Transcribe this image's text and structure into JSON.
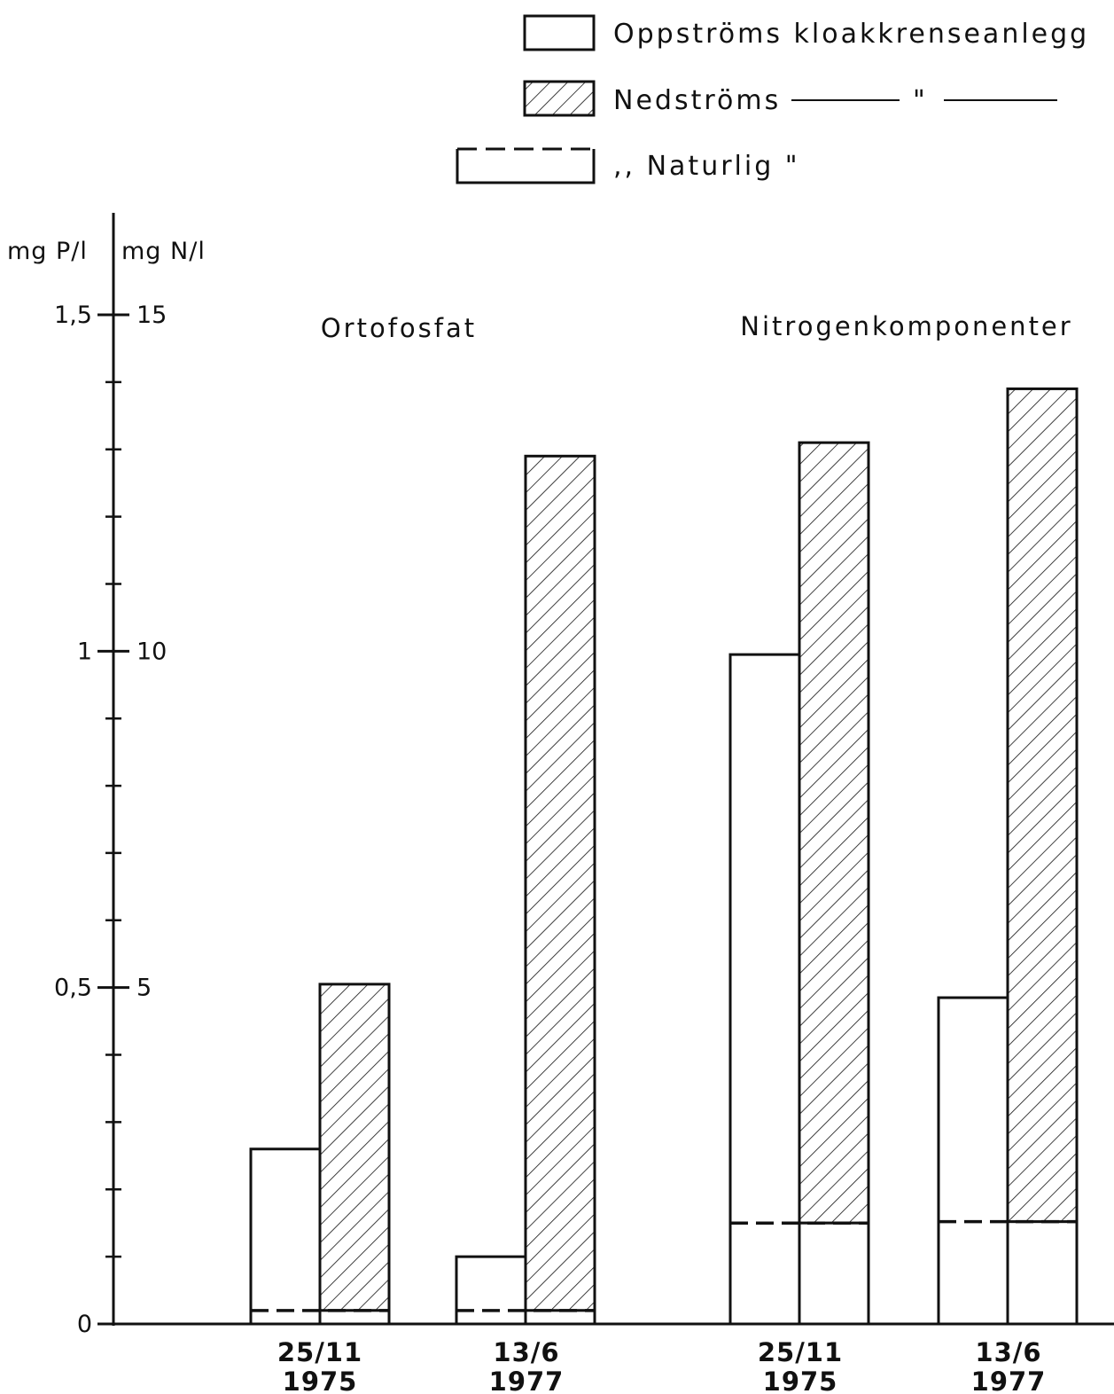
{
  "chart_data": {
    "type": "bar",
    "title": "",
    "legend": {
      "placement": "top-right",
      "entries": [
        {
          "key": "upstream",
          "label": "Oppströms kloakkrenseanlegg",
          "style": "open"
        },
        {
          "key": "downstream",
          "label": "Nedströms",
          "ditto": "\"",
          "style": "hatched"
        },
        {
          "key": "natural",
          "label": ",, Naturlig \"",
          "style": "dashed"
        }
      ]
    },
    "axes": {
      "left_unit": "mg P/l",
      "right_unit": "mg N/l",
      "p_range": [
        0,
        1.5
      ],
      "n_range": [
        0,
        15
      ],
      "minor_step_p": 0.1,
      "ticks": [
        {
          "p_value": 0,
          "label_p": "0",
          "label_n": ""
        },
        {
          "p_value": 0.5,
          "label_p": "0,5",
          "label_n": "5"
        },
        {
          "p_value": 1.0,
          "label_p": "1",
          "label_n": "10"
        },
        {
          "p_value": 1.5,
          "label_p": "1,5",
          "label_n": "15"
        }
      ]
    },
    "groups": [
      {
        "name": "Ortofosfat",
        "unit": "mg P/l",
        "dates": [
          {
            "date": "25/11",
            "year": "1975",
            "upstream": 0.26,
            "downstream": 0.505,
            "natural": 0.02
          },
          {
            "date": "13/6",
            "year": "1977",
            "upstream": 0.1,
            "downstream": 1.29,
            "natural": 0.02
          }
        ]
      },
      {
        "name": "Nitrogenkomponenter",
        "unit": "mg N/l",
        "dates": [
          {
            "date": "25/11",
            "year": "1975",
            "upstream": 9.95,
            "downstream": 13.1,
            "natural": 1.5
          },
          {
            "date": "13/6",
            "year": "1977",
            "upstream": 4.85,
            "downstream": 13.9,
            "natural": 1.52
          }
        ]
      }
    ],
    "grid": false
  }
}
